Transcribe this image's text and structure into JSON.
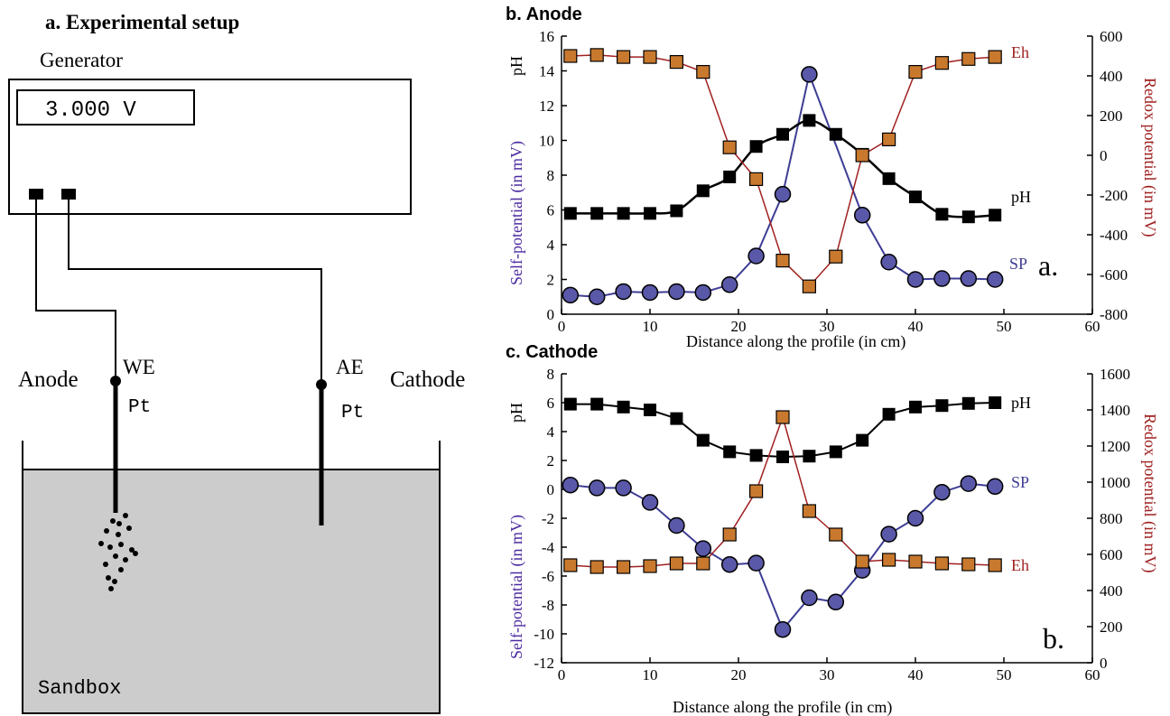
{
  "colors": {
    "sp": "#3e3d94",
    "sp_fill": "#5a58a8",
    "eh_line": "#a02020",
    "eh_fill": "#c8792e",
    "ph": "#000000",
    "redox_axis": "#a02020",
    "sp_axis": "#4b2aa0",
    "sand": "#cccccc"
  },
  "setup": {
    "title": "a. Experimental setup",
    "generator_label": "Generator",
    "voltage": "3.000 V",
    "anode_label": "Anode",
    "cathode_label": "Cathode",
    "we_label": "WE",
    "ae_label": "AE",
    "we_electrode": "Pt",
    "ae_electrode": "Pt",
    "sandbox_label": "Sandbox"
  },
  "chart_data": [
    {
      "type": "line",
      "title": "b. Anode",
      "panel_letter": "a.",
      "xlabel": "Distance along the profile (in cm)",
      "ylabel_left_sp": "Self-potential (in mV)",
      "ylabel_left_ph": "pH",
      "ylabel_right": "Redox potential (in mV)",
      "xlim": [
        0,
        60
      ],
      "xticks": [
        "0",
        "10",
        "20",
        "30",
        "40",
        "50",
        "60"
      ],
      "ylim_left": [
        0,
        16
      ],
      "yticks_left": [
        "0",
        "2",
        "4",
        "6",
        "8",
        "10",
        "12",
        "14",
        "16"
      ],
      "ylim_right": [
        -800,
        600
      ],
      "yticks_right": [
        "-800",
        "-600",
        "-400",
        "-200",
        "0",
        "200",
        "400",
        "600"
      ],
      "series": [
        {
          "name": "SP",
          "axis": "left",
          "marker": "circle",
          "x": [
            1,
            4,
            7,
            10,
            13,
            16,
            19,
            22,
            25,
            28,
            34,
            37,
            40,
            43,
            46,
            49
          ],
          "y": [
            1.1,
            1.0,
            1.3,
            1.25,
            1.3,
            1.25,
            1.7,
            3.35,
            6.9,
            13.8,
            5.7,
            3.0,
            2.0,
            2.05,
            2.05,
            2.0
          ]
        },
        {
          "name": "pH",
          "axis": "left",
          "marker": "square",
          "x": [
            1,
            4,
            7,
            10,
            13,
            16,
            19,
            22,
            25,
            28,
            31,
            34,
            37,
            40,
            43,
            46,
            49
          ],
          "y": [
            5.8,
            5.8,
            5.8,
            5.8,
            5.95,
            7.1,
            7.9,
            9.65,
            10.35,
            11.15,
            10.35,
            9.2,
            7.8,
            6.75,
            5.75,
            5.6,
            5.7
          ]
        },
        {
          "name": "Eh",
          "axis": "right",
          "marker": "square",
          "x": [
            1,
            4,
            7,
            10,
            13,
            16,
            19,
            22,
            25,
            28,
            31,
            34,
            37,
            40,
            43,
            46,
            49
          ],
          "y": [
            500,
            505,
            495,
            495,
            470,
            420,
            40,
            -120,
            -530,
            -660,
            -510,
            0,
            80,
            420,
            465,
            485,
            495
          ]
        }
      ]
    },
    {
      "type": "line",
      "title": "c. Cathode",
      "panel_letter": "b.",
      "xlabel": "Distance along the profile (in cm)",
      "ylabel_left_sp": "Self-potential (in mV)",
      "ylabel_left_ph": "pH",
      "ylabel_right": "Redox potential (in mV)",
      "xlim": [
        0,
        60
      ],
      "xticks": [
        "0",
        "10",
        "20",
        "30",
        "40",
        "50",
        "60"
      ],
      "ylim_left": [
        -12,
        8
      ],
      "yticks_left": [
        "-12",
        "-10",
        "-8",
        "-6",
        "-4",
        "-2",
        "0",
        "2",
        "4",
        "6",
        "8"
      ],
      "ylim_right": [
        0,
        1600
      ],
      "yticks_right": [
        "0",
        "200",
        "400",
        "600",
        "800",
        "1000",
        "1200",
        "1400",
        "1600"
      ],
      "series": [
        {
          "name": "pH",
          "axis": "left",
          "marker": "square",
          "x": [
            1,
            4,
            7,
            10,
            13,
            16,
            19,
            22,
            25,
            28,
            31,
            34,
            37,
            40,
            43,
            46,
            49
          ],
          "y": [
            5.9,
            5.9,
            5.7,
            5.5,
            4.9,
            3.4,
            2.6,
            2.35,
            2.25,
            2.3,
            2.6,
            3.4,
            5.2,
            5.7,
            5.8,
            5.95,
            6.0
          ]
        },
        {
          "name": "SP",
          "axis": "left",
          "marker": "circle",
          "x": [
            1,
            4,
            7,
            10,
            13,
            16,
            19,
            22,
            25,
            28,
            31,
            34,
            37,
            40,
            43,
            46,
            49
          ],
          "y": [
            0.3,
            0.1,
            0.1,
            -0.9,
            -2.5,
            -4.1,
            -5.2,
            -5.1,
            -9.7,
            -7.5,
            -7.8,
            -5.6,
            -3.1,
            -2.0,
            -0.2,
            0.4,
            0.2
          ]
        },
        {
          "name": "Eh",
          "axis": "right",
          "marker": "square",
          "x": [
            1,
            4,
            7,
            10,
            13,
            16,
            19,
            22,
            25,
            28,
            31,
            34,
            37,
            40,
            43,
            46,
            49
          ],
          "y": [
            540,
            530,
            530,
            535,
            550,
            550,
            710,
            950,
            1360,
            840,
            710,
            560,
            570,
            560,
            550,
            545,
            540
          ]
        }
      ]
    }
  ]
}
